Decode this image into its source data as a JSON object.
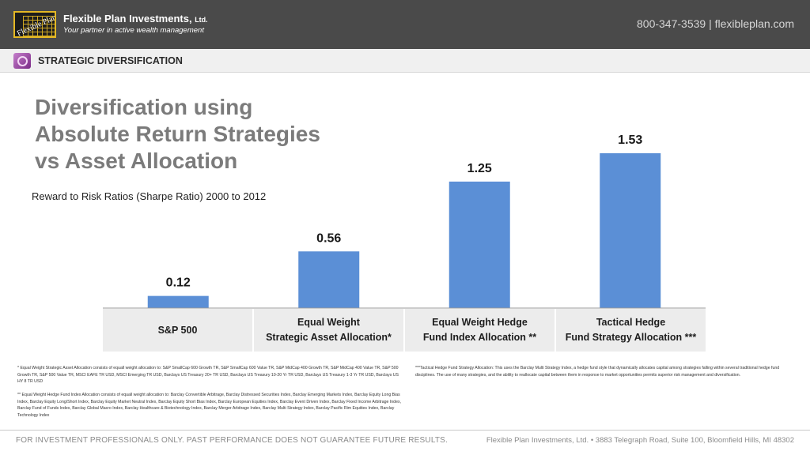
{
  "header": {
    "logo_text": "Flexible Plan",
    "company": "Flexible Plan Investments,",
    "company_suffix": "Ltd.",
    "tagline": "Your partner in active wealth management",
    "contact": "800-347-3539  |  flexibleplan.com"
  },
  "section": {
    "title": "STRATEGIC DIVERSIFICATION"
  },
  "slide": {
    "title_lines": [
      "Diversification using",
      "Absolute Return Strategies",
      "vs Asset Allocation"
    ]
  },
  "chart_data": {
    "type": "bar",
    "title": "Reward to Risk Ratios (Sharpe Ratio) 2000 to 2012",
    "categories": [
      "S&P 500",
      "Equal Weight\nStrategic Asset Allocation*",
      "Equal Weight Hedge\nFund Index Allocation **",
      "Tactical Hedge\nFund Strategy Allocation ***"
    ],
    "values": [
      0.12,
      0.56,
      1.25,
      1.53
    ],
    "data_labels": [
      "0.12",
      "0.56",
      "1.25",
      "1.53"
    ],
    "xlabel": "",
    "ylabel": "",
    "ylim": [
      0,
      1.53
    ],
    "grid": false,
    "legend": "none",
    "bar_color": "#5b8fd6"
  },
  "footnotes": {
    "note1": "* Equal Weight Strategic Asset Allocation consists of equall weight allocation to: S&P SmallCap 600 Growth TR, S&P SmallCap 600 Value TR, S&P MidCap 400 Growth TR, S&P MidCap 400 Value TR, S&P 500 Growth TR, S&P 500 Value TR, MSCI EAFE TR USD, MSCI Emerging TR USD, Barclays US Treasury 20+ TR USD, Barclays US Treasury 10-20 Yr TR USD, Barclays US Treasury 1-3 Yr TR USD, Barclays US HY 8 TR USD",
    "note2": "** Equal Weight Hedge Fund Index Allocation consists of equall weight allocation to: Barclay Convertible Arbitrage, Barclay Distressed Securities Index, Barclay Emerging Markets Index, Barclay Equity Long Bias Index, Barclay Equity Long/Short Index, Barclay Equity Market Neutral Index, Barclay Equity Short Bias Index, Barclay European Equities Index, Barclay Event Driven Index, Barclay Fixed Income Arbitrage Index, Barclay Fund of Funds Index, Barclay Global Macro Index, Barclay Healthcare & Biotechnology Index, Barclay Merger Arbitrage Index, Barclay Multi Strategy Index, Barclay Pacific Rim Equities Index, Barclay Technology Index",
    "note3": "***Tactical Hedge Fund Strategy Allocation: This uses the Barclay Multi Strategy Index, a hedge fund style that dynamically allocates capital among strategies falling within several traditional hedge fund disciplines. The use of many strategies, and the ability to reallocate capital between them in response to market opportunities permits superior risk management and diversification."
  },
  "footer": {
    "disclaimer": "FOR INVESTMENT PROFESSIONALS ONLY. PAST PERFORMANCE DOES NOT GUARANTEE FUTURE RESULTS.",
    "address": "Flexible Plan Investments, Ltd.  •  3883 Telegraph Road, Suite 100, Bloomfield Hills, MI 48302"
  }
}
